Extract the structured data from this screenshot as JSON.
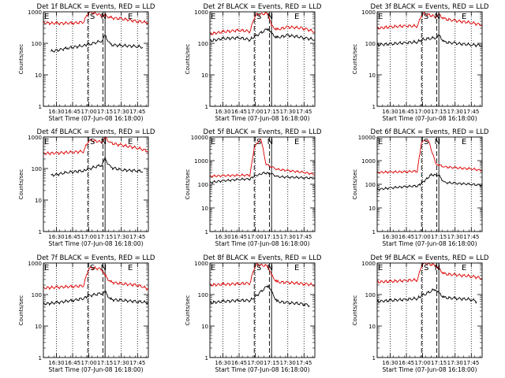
{
  "figure": {
    "background": "#ffffff",
    "colors": {
      "events": "#000000",
      "lld": "#dd0000",
      "markers": "#000000"
    }
  },
  "chart_data": [
    {
      "type": "line",
      "title": "Det 1f BLACK = Events, RED = LLD",
      "xlabel": "Start Time (07-Jun-08 16:18:00)",
      "ylabel": "Counts/sec",
      "xlim": [
        "16:18",
        "17:55"
      ],
      "ylim": [
        1,
        1000
      ],
      "yscale": "log",
      "xticks": [
        "16:30",
        "16:45",
        "17:00",
        "17:15",
        "17:30",
        "17:45"
      ],
      "yticks": [
        "1",
        "10",
        "100",
        "1000"
      ],
      "markers": [
        {
          "label": "E",
          "time": "16:18"
        },
        {
          "label": "S",
          "time": "17:01"
        },
        {
          "label": "N",
          "time": "17:11"
        },
        {
          "label": "E",
          "time": "17:36"
        }
      ],
      "dotted_times": [
        "16:30",
        "16:45",
        "17:00",
        "17:30",
        "17:45"
      ],
      "dashed_times": [
        "16:59",
        "17:13"
      ],
      "solid_times": [
        "17:15"
      ],
      "series": [
        {
          "name": "Events",
          "color": "#000000",
          "x": [
            "16:25",
            "16:40",
            "16:55",
            "16:59",
            "17:12",
            "17:15",
            "17:20",
            "17:30",
            "17:45",
            "17:50"
          ],
          "y": [
            55,
            70,
            85,
            90,
            120,
            175,
            90,
            85,
            80,
            75
          ]
        },
        {
          "name": "LLD",
          "color": "#dd0000",
          "x": [
            "16:18",
            "16:30",
            "16:45",
            "16:55",
            "17:00",
            "17:12",
            "17:15",
            "17:20",
            "17:30",
            "17:45",
            "17:55"
          ],
          "y": [
            450,
            430,
            440,
            470,
            1000,
            780,
            750,
            650,
            600,
            500,
            450
          ]
        }
      ]
    },
    {
      "type": "line",
      "title": "Det 2f BLACK = Events, RED = LLD",
      "xlabel": "Start Time (07-Jun-08 16:18:00)",
      "ylabel": "Counts/sec",
      "xlim": [
        "16:18",
        "17:55"
      ],
      "ylim": [
        1,
        1000
      ],
      "yscale": "log",
      "xticks": [
        "16:30",
        "16:45",
        "17:00",
        "17:15",
        "17:30",
        "17:45"
      ],
      "yticks": [
        "1",
        "10",
        "100",
        "1000"
      ],
      "markers": [
        {
          "label": "E",
          "time": "16:18"
        },
        {
          "label": "S",
          "time": "17:01"
        },
        {
          "label": "N",
          "time": "17:11"
        },
        {
          "label": "E",
          "time": "17:36"
        }
      ],
      "dotted_times": [
        "16:30",
        "16:45",
        "17:00",
        "17:30",
        "17:45"
      ],
      "dashed_times": [
        "16:59",
        "17:13"
      ],
      "solid_times": [
        "17:15"
      ],
      "series": [
        {
          "name": "Events",
          "color": "#000000",
          "x": [
            "16:18",
            "16:30",
            "16:45",
            "16:55",
            "16:59",
            "17:12",
            "17:15",
            "17:20",
            "17:30",
            "17:45",
            "17:55"
          ],
          "y": [
            120,
            140,
            150,
            130,
            160,
            300,
            200,
            150,
            180,
            150,
            130
          ]
        },
        {
          "name": "LLD",
          "color": "#dd0000",
          "x": [
            "16:18",
            "16:30",
            "16:45",
            "16:55",
            "17:00",
            "17:12",
            "17:15",
            "17:20",
            "17:30",
            "17:45",
            "17:55"
          ],
          "y": [
            200,
            230,
            260,
            240,
            800,
            900,
            350,
            270,
            330,
            300,
            230
          ]
        }
      ]
    },
    {
      "type": "line",
      "title": "Det 3f BLACK = Events, RED = LLD",
      "xlabel": "Start Time (07-Jun-08 16:18:00)",
      "ylabel": "Counts/sec",
      "xlim": [
        "16:18",
        "17:55"
      ],
      "ylim": [
        1,
        1000
      ],
      "yscale": "log",
      "xticks": [
        "16:30",
        "16:45",
        "17:00",
        "17:15",
        "17:30",
        "17:45"
      ],
      "yticks": [
        "1",
        "10",
        "100",
        "1000"
      ],
      "markers": [
        {
          "label": "E",
          "time": "16:18"
        },
        {
          "label": "S",
          "time": "17:01"
        },
        {
          "label": "N",
          "time": "17:11"
        },
        {
          "label": "E",
          "time": "17:36"
        }
      ],
      "dotted_times": [
        "16:30",
        "16:45",
        "17:00",
        "17:30",
        "17:45"
      ],
      "dashed_times": [
        "16:59",
        "17:13"
      ],
      "solid_times": [
        "17:15"
      ],
      "series": [
        {
          "name": "Events",
          "color": "#000000",
          "x": [
            "16:18",
            "16:30",
            "16:45",
            "16:55",
            "16:59",
            "17:12",
            "17:15",
            "17:20",
            "17:30",
            "17:45",
            "17:55"
          ],
          "y": [
            90,
            95,
            105,
            110,
            130,
            150,
            180,
            110,
            100,
            90,
            85
          ]
        },
        {
          "name": "LLD",
          "color": "#dd0000",
          "x": [
            "16:18",
            "16:30",
            "16:45",
            "16:55",
            "17:00",
            "17:12",
            "17:15",
            "17:20",
            "17:30",
            "17:45",
            "17:55"
          ],
          "y": [
            300,
            330,
            360,
            350,
            900,
            700,
            800,
            600,
            520,
            450,
            380
          ]
        }
      ]
    },
    {
      "type": "line",
      "title": "Det 4f BLACK = Events, RED = LLD",
      "xlabel": "Start Time (07-Jun-08 16:18:00)",
      "ylabel": "Counts/sec",
      "xlim": [
        "16:18",
        "17:55"
      ],
      "ylim": [
        1,
        1000
      ],
      "yscale": "log",
      "xticks": [
        "16:30",
        "16:45",
        "17:00",
        "17:15",
        "17:30",
        "17:45"
      ],
      "yticks": [
        "1",
        "10",
        "100",
        "1000"
      ],
      "markers": [
        {
          "label": "E",
          "time": "16:18"
        },
        {
          "label": "S",
          "time": "17:01"
        },
        {
          "label": "N",
          "time": "17:11"
        },
        {
          "label": "E",
          "time": "17:36"
        }
      ],
      "dotted_times": [
        "16:30",
        "16:45",
        "17:00",
        "17:30",
        "17:45"
      ],
      "dashed_times": [
        "16:59",
        "17:13"
      ],
      "solid_times": [
        "17:15"
      ],
      "series": [
        {
          "name": "Events",
          "color": "#000000",
          "x": [
            "16:25",
            "16:40",
            "16:55",
            "16:59",
            "17:12",
            "17:15",
            "17:20",
            "17:30",
            "17:45",
            "17:50"
          ],
          "y": [
            60,
            75,
            85,
            95,
            130,
            200,
            110,
            90,
            85,
            80
          ]
        },
        {
          "name": "LLD",
          "color": "#dd0000",
          "x": [
            "16:18",
            "16:30",
            "16:45",
            "16:55",
            "17:00",
            "17:12",
            "17:15",
            "17:20",
            "17:30",
            "17:45",
            "17:55"
          ],
          "y": [
            300,
            310,
            330,
            350,
            800,
            700,
            950,
            650,
            550,
            450,
            350
          ]
        }
      ]
    },
    {
      "type": "line",
      "title": "Det 5f BLACK = Events, RED = LLD",
      "xlabel": "Start Time (07-Jun-08 16:18:00)",
      "ylabel": "Counts/sec",
      "xlim": [
        "16:18",
        "17:55"
      ],
      "ylim": [
        1,
        10000
      ],
      "yscale": "log",
      "xticks": [
        "16:30",
        "16:45",
        "17:00",
        "17:15",
        "17:30",
        "17:45"
      ],
      "yticks": [
        "1",
        "10",
        "100",
        "1000",
        "10000"
      ],
      "markers": [
        {
          "label": "E",
          "time": "16:18"
        },
        {
          "label": "S",
          "time": "17:01"
        },
        {
          "label": "N",
          "time": "17:11"
        },
        {
          "label": "E",
          "time": "17:36"
        }
      ],
      "dotted_times": [
        "16:30",
        "16:45",
        "17:00",
        "17:30",
        "17:45"
      ],
      "dashed_times": [
        "16:59",
        "17:13"
      ],
      "solid_times": [
        "17:15"
      ],
      "series": [
        {
          "name": "Events",
          "color": "#000000",
          "x": [
            "16:18",
            "16:30",
            "16:45",
            "16:55",
            "16:59",
            "17:08",
            "17:15",
            "17:20",
            "17:30",
            "17:45",
            "17:55"
          ],
          "y": [
            120,
            140,
            160,
            170,
            220,
            300,
            280,
            210,
            200,
            190,
            180
          ]
        },
        {
          "name": "LLD",
          "color": "#dd0000",
          "x": [
            "16:18",
            "16:30",
            "16:45",
            "16:55",
            "16:59",
            "17:05",
            "17:10",
            "17:15",
            "17:20",
            "17:30",
            "17:45",
            "17:55"
          ],
          "y": [
            220,
            230,
            240,
            245,
            3500,
            9000,
            700,
            550,
            430,
            380,
            320,
            260
          ]
        }
      ]
    },
    {
      "type": "line",
      "title": "Det 6f BLACK = Events, RED = LLD",
      "xlabel": "Start Time (07-Jun-08 16:18:00)",
      "ylabel": "Counts/sec",
      "xlim": [
        "16:18",
        "17:55"
      ],
      "ylim": [
        1,
        10000
      ],
      "yscale": "log",
      "xticks": [
        "16:30",
        "16:45",
        "17:00",
        "17:15",
        "17:30",
        "17:45"
      ],
      "yticks": [
        "1",
        "10",
        "100",
        "1000",
        "10000"
      ],
      "markers": [
        {
          "label": "E",
          "time": "16:18"
        },
        {
          "label": "S",
          "time": "17:01"
        },
        {
          "label": "N",
          "time": "17:11"
        },
        {
          "label": "E",
          "time": "17:36"
        }
      ],
      "dotted_times": [
        "16:30",
        "16:45",
        "17:00",
        "17:30",
        "17:45"
      ],
      "dashed_times": [
        "16:59",
        "17:13"
      ],
      "solid_times": [
        "17:15"
      ],
      "series": [
        {
          "name": "Events",
          "color": "#000000",
          "x": [
            "16:18",
            "16:30",
            "16:45",
            "16:55",
            "16:59",
            "17:08",
            "17:15",
            "17:20",
            "17:30",
            "17:45",
            "17:55"
          ],
          "y": [
            60,
            70,
            80,
            85,
            110,
            250,
            240,
            120,
            110,
            100,
            90
          ]
        },
        {
          "name": "LLD",
          "color": "#dd0000",
          "x": [
            "16:18",
            "16:30",
            "16:45",
            "16:55",
            "16:59",
            "17:05",
            "17:12",
            "17:15",
            "17:20",
            "17:30",
            "17:45",
            "17:55"
          ],
          "y": [
            320,
            330,
            340,
            360,
            6000,
            8000,
            800,
            650,
            550,
            500,
            450,
            380
          ]
        }
      ]
    },
    {
      "type": "line",
      "title": "Det 7f BLACK = Events, RED = LLD",
      "xlabel": "Start Time (07-Jun-08 16:18:00)",
      "ylabel": "Counts/sec",
      "xlim": [
        "16:18",
        "17:55"
      ],
      "ylim": [
        1,
        1000
      ],
      "yscale": "log",
      "xticks": [
        "16:30",
        "16:45",
        "17:00",
        "17:15",
        "17:30",
        "17:45"
      ],
      "yticks": [
        "1",
        "10",
        "100",
        "1000"
      ],
      "markers": [
        {
          "label": "E",
          "time": "16:18"
        },
        {
          "label": "S",
          "time": "17:01"
        },
        {
          "label": "N",
          "time": "17:11"
        },
        {
          "label": "E",
          "time": "17:36"
        }
      ],
      "dotted_times": [
        "16:30",
        "16:45",
        "17:00",
        "17:30",
        "17:45"
      ],
      "dashed_times": [
        "16:59",
        "17:13"
      ],
      "solid_times": [
        "17:15"
      ],
      "series": [
        {
          "name": "Events",
          "color": "#000000",
          "x": [
            "16:18",
            "16:30",
            "16:45",
            "16:55",
            "16:59",
            "17:12",
            "17:15",
            "17:20",
            "17:30",
            "17:45",
            "17:55"
          ],
          "y": [
            50,
            55,
            65,
            75,
            90,
            110,
            120,
            70,
            65,
            60,
            55
          ]
        },
        {
          "name": "LLD",
          "color": "#dd0000",
          "x": [
            "16:18",
            "16:30",
            "16:45",
            "16:55",
            "17:00",
            "17:12",
            "17:15",
            "17:20",
            "17:30",
            "17:45",
            "17:55"
          ],
          "y": [
            160,
            170,
            180,
            190,
            700,
            650,
            400,
            250,
            220,
            200,
            150
          ]
        }
      ]
    },
    {
      "type": "line",
      "title": "Det 8f BLACK = Events, RED = LLD",
      "xlabel": "Start Time (07-Jun-08 16:18:00)",
      "ylabel": "Counts/sec",
      "xlim": [
        "16:18",
        "17:55"
      ],
      "ylim": [
        1,
        1000
      ],
      "yscale": "log",
      "xticks": [
        "16:30",
        "16:45",
        "17:00",
        "17:15",
        "17:30",
        "17:45"
      ],
      "yticks": [
        "1",
        "10",
        "100",
        "1000"
      ],
      "markers": [
        {
          "label": "E",
          "time": "16:18"
        },
        {
          "label": "S",
          "time": "17:01"
        },
        {
          "label": "N",
          "time": "17:11"
        },
        {
          "label": "E",
          "time": "17:36"
        }
      ],
      "dotted_times": [
        "16:30",
        "16:45",
        "17:00",
        "17:30",
        "17:45"
      ],
      "dashed_times": [
        "16:59",
        "17:13"
      ],
      "solid_times": [
        "17:15"
      ],
      "series": [
        {
          "name": "Events",
          "color": "#000000",
          "x": [
            "16:18",
            "16:30",
            "16:45",
            "16:55",
            "16:59",
            "17:12",
            "17:15",
            "17:20",
            "17:30",
            "17:45",
            "17:50"
          ],
          "y": [
            55,
            60,
            65,
            65,
            80,
            200,
            120,
            60,
            55,
            50,
            45
          ]
        },
        {
          "name": "LLD",
          "color": "#dd0000",
          "x": [
            "16:18",
            "16:30",
            "16:45",
            "16:55",
            "17:00",
            "17:12",
            "17:15",
            "17:20",
            "17:30",
            "17:45",
            "17:55"
          ],
          "y": [
            200,
            210,
            220,
            230,
            900,
            800,
            400,
            250,
            240,
            220,
            200
          ]
        }
      ]
    },
    {
      "type": "line",
      "title": "Det 9f BLACK = Events, RED = LLD",
      "xlabel": "Start Time (07-Jun-08 16:18:00)",
      "ylabel": "Counts/sec",
      "xlim": [
        "16:18",
        "17:55"
      ],
      "ylim": [
        1,
        1000
      ],
      "yscale": "log",
      "xticks": [
        "16:30",
        "16:45",
        "17:00",
        "17:15",
        "17:30",
        "17:45"
      ],
      "yticks": [
        "1",
        "10",
        "100",
        "1000"
      ],
      "markers": [
        {
          "label": "E",
          "time": "16:18"
        },
        {
          "label": "S",
          "time": "17:01"
        },
        {
          "label": "N",
          "time": "17:11"
        },
        {
          "label": "E",
          "time": "17:36"
        }
      ],
      "dotted_times": [
        "16:30",
        "16:45",
        "17:00",
        "17:30",
        "17:45"
      ],
      "dashed_times": [
        "16:59",
        "17:13"
      ],
      "solid_times": [
        "17:15"
      ],
      "series": [
        {
          "name": "Events",
          "color": "#000000",
          "x": [
            "16:18",
            "16:30",
            "16:45",
            "16:55",
            "16:59",
            "17:12",
            "17:15",
            "17:20",
            "17:30",
            "17:45",
            "17:50"
          ],
          "y": [
            60,
            65,
            70,
            75,
            90,
            150,
            110,
            80,
            75,
            70,
            60
          ]
        },
        {
          "name": "LLD",
          "color": "#dd0000",
          "x": [
            "16:18",
            "16:30",
            "16:45",
            "16:55",
            "17:00",
            "17:12",
            "17:15",
            "17:20",
            "17:30",
            "17:45",
            "17:55"
          ],
          "y": [
            250,
            260,
            280,
            290,
            1000,
            850,
            650,
            450,
            420,
            380,
            330
          ]
        }
      ]
    }
  ]
}
